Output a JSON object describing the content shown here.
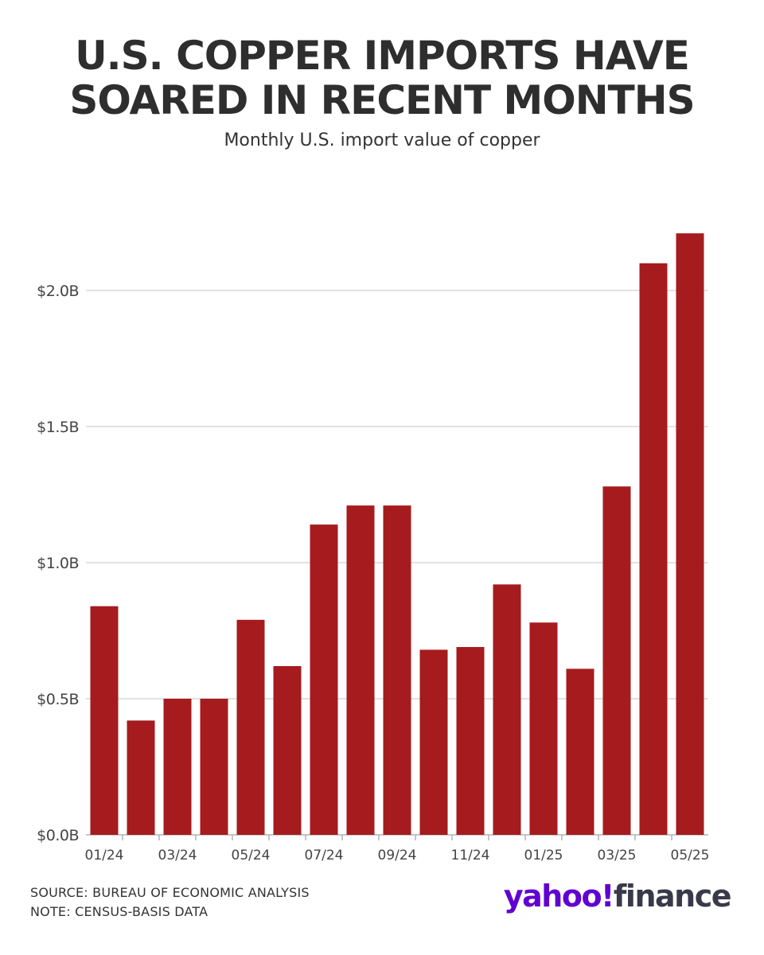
{
  "chart_data": {
    "type": "bar",
    "title_line1": "U.S. COPPER IMPORTS HAVE",
    "title_line2": "SOARED IN RECENT MONTHS",
    "subtitle": "Monthly U.S. import value of copper",
    "categories": [
      "01/24",
      "02/24",
      "03/24",
      "04/24",
      "05/24",
      "06/24",
      "07/24",
      "08/24",
      "09/24",
      "10/24",
      "11/24",
      "12/24",
      "01/25",
      "02/25",
      "03/25",
      "04/25",
      "05/25"
    ],
    "x_tick_labels": [
      "01/24",
      "",
      "03/24",
      "",
      "05/24",
      "",
      "07/24",
      "",
      "09/24",
      "",
      "11/24",
      "",
      "01/25",
      "",
      "03/25",
      "",
      "05/25"
    ],
    "values": [
      0.84,
      0.42,
      0.5,
      0.5,
      0.79,
      0.62,
      1.14,
      1.21,
      1.21,
      0.68,
      0.69,
      0.92,
      0.78,
      0.61,
      1.28,
      2.1,
      2.21
    ],
    "y_ticks": [
      0.0,
      0.5,
      1.0,
      1.5,
      2.0
    ],
    "y_tick_labels": [
      "$0.0B",
      "$0.5B",
      "$1.0B",
      "$1.5B",
      "$2.0B"
    ],
    "ylim": [
      0,
      2.21
    ],
    "xlabel": "",
    "ylabel": "",
    "grid": true,
    "bar_color": "#a51b1e",
    "grid_color": "#d9d9d9"
  },
  "footer": {
    "source": "SOURCE: BUREAU OF ECONOMIC ANALYSIS",
    "note": "NOTE: CENSUS-BASIS DATA"
  },
  "logo": {
    "yahoo": "yahoo!",
    "finance": "finance",
    "yahoo_color": "#6001d2",
    "finance_color": "#39394a"
  }
}
